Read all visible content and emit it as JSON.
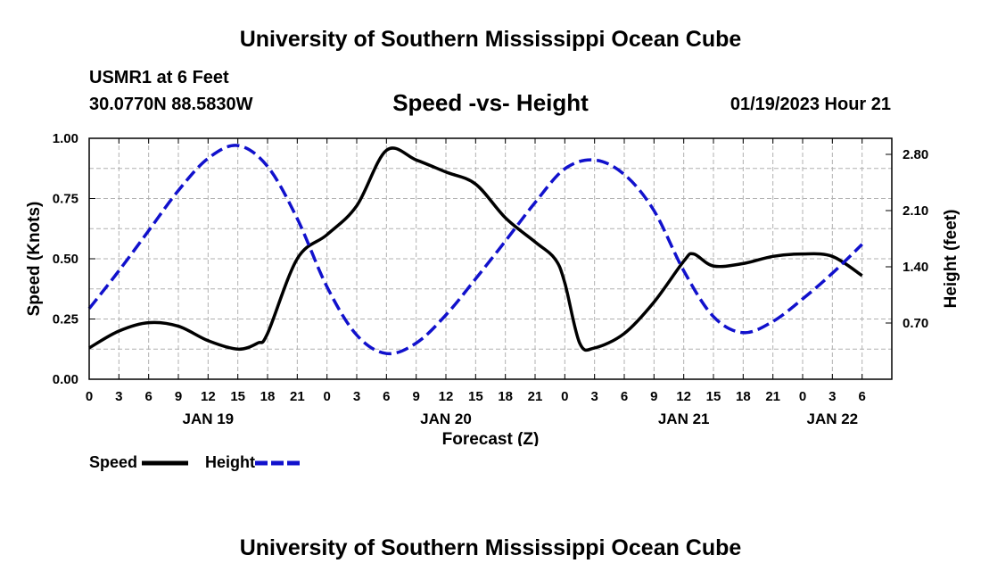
{
  "header": {
    "title": "University of Southern Mississippi Ocean Cube",
    "station": "USMR1 at 6 Feet",
    "coords": "30.0770N  88.5830W",
    "chart_title": "Speed -vs- Height",
    "datetime": "01/19/2023 Hour 21"
  },
  "footer": {
    "title": "University of Southern Mississippi Ocean Cube"
  },
  "legend": {
    "speed_label": "Speed",
    "height_label": "Height"
  },
  "colors": {
    "speed": "#000000",
    "height": "#1111cc",
    "grid": "#b0b0b0"
  },
  "chart_data": {
    "type": "line",
    "title": "Speed -vs- Height",
    "xlabel": "Forecast (Z)",
    "ylabel_left": "Speed (Knots)",
    "ylabel_right": "Height (feet)",
    "x_range_hours": [
      0,
      81
    ],
    "x_ticks": [
      {
        "h": 0,
        "label": "0"
      },
      {
        "h": 3,
        "label": "3"
      },
      {
        "h": 6,
        "label": "6"
      },
      {
        "h": 9,
        "label": "9"
      },
      {
        "h": 12,
        "label": "12"
      },
      {
        "h": 15,
        "label": "15"
      },
      {
        "h": 18,
        "label": "18"
      },
      {
        "h": 21,
        "label": "21"
      },
      {
        "h": 24,
        "label": "0"
      },
      {
        "h": 27,
        "label": "3"
      },
      {
        "h": 30,
        "label": "6"
      },
      {
        "h": 33,
        "label": "9"
      },
      {
        "h": 36,
        "label": "12"
      },
      {
        "h": 39,
        "label": "15"
      },
      {
        "h": 42,
        "label": "18"
      },
      {
        "h": 45,
        "label": "21"
      },
      {
        "h": 48,
        "label": "0"
      },
      {
        "h": 51,
        "label": "3"
      },
      {
        "h": 54,
        "label": "6"
      },
      {
        "h": 57,
        "label": "9"
      },
      {
        "h": 60,
        "label": "12"
      },
      {
        "h": 63,
        "label": "15"
      },
      {
        "h": 66,
        "label": "18"
      },
      {
        "h": 69,
        "label": "21"
      },
      {
        "h": 72,
        "label": "0"
      },
      {
        "h": 75,
        "label": "3"
      },
      {
        "h": 78,
        "label": "6"
      }
    ],
    "day_labels": [
      {
        "h": 12,
        "label": "JAN 19"
      },
      {
        "h": 36,
        "label": "JAN 20"
      },
      {
        "h": 60,
        "label": "JAN 21"
      },
      {
        "h": 75,
        "label": "JAN 22"
      }
    ],
    "ylim_left": [
      0,
      1
    ],
    "yticks_left": [
      0.0,
      0.25,
      0.5,
      0.75,
      1.0
    ],
    "yticks_left_labels": [
      "0.00",
      "0.25",
      "0.50",
      "0.75",
      "1.00"
    ],
    "ylim_right": [
      0,
      3.0
    ],
    "yticks_right": [
      0.7,
      1.4,
      2.1,
      2.8
    ],
    "yticks_right_labels": [
      "0.70",
      "1.40",
      "2.10",
      "2.80"
    ],
    "series": [
      {
        "name": "Speed",
        "axis": "left",
        "style": "solid",
        "points": [
          [
            0,
            0.13
          ],
          [
            3,
            0.2
          ],
          [
            6,
            0.235
          ],
          [
            9,
            0.22
          ],
          [
            12,
            0.16
          ],
          [
            15,
            0.125
          ],
          [
            17,
            0.15
          ],
          [
            18,
            0.19
          ],
          [
            21,
            0.5
          ],
          [
            24,
            0.6
          ],
          [
            27,
            0.72
          ],
          [
            30,
            0.95
          ],
          [
            33,
            0.91
          ],
          [
            36,
            0.86
          ],
          [
            39,
            0.81
          ],
          [
            42,
            0.67
          ],
          [
            45,
            0.57
          ],
          [
            47,
            0.5
          ],
          [
            48,
            0.4
          ],
          [
            49.5,
            0.15
          ],
          [
            51,
            0.13
          ],
          [
            54,
            0.19
          ],
          [
            57,
            0.32
          ],
          [
            60,
            0.49
          ],
          [
            61,
            0.52
          ],
          [
            63,
            0.47
          ],
          [
            66,
            0.48
          ],
          [
            69,
            0.51
          ],
          [
            72,
            0.52
          ],
          [
            75,
            0.51
          ],
          [
            78,
            0.43
          ]
        ]
      },
      {
        "name": "Height",
        "axis": "right",
        "style": "dashed",
        "points": [
          [
            0,
            0.88
          ],
          [
            3,
            1.35
          ],
          [
            6,
            1.85
          ],
          [
            9,
            2.35
          ],
          [
            12,
            2.75
          ],
          [
            15,
            2.91
          ],
          [
            18,
            2.65
          ],
          [
            21,
            2.0
          ],
          [
            24,
            1.15
          ],
          [
            27,
            0.55
          ],
          [
            30,
            0.32
          ],
          [
            33,
            0.45
          ],
          [
            36,
            0.8
          ],
          [
            39,
            1.25
          ],
          [
            42,
            1.72
          ],
          [
            45,
            2.2
          ],
          [
            48,
            2.62
          ],
          [
            51,
            2.73
          ],
          [
            54,
            2.55
          ],
          [
            57,
            2.1
          ],
          [
            60,
            1.35
          ],
          [
            63,
            0.78
          ],
          [
            66,
            0.58
          ],
          [
            69,
            0.72
          ],
          [
            72,
            1.0
          ],
          [
            75,
            1.32
          ],
          [
            78,
            1.68
          ]
        ]
      }
    ]
  }
}
